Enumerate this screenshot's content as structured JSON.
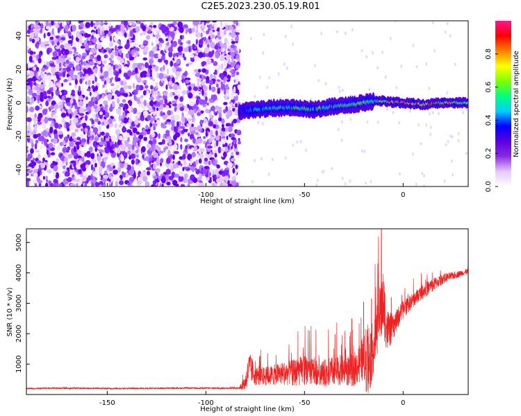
{
  "figure": {
    "title": "C2E5.2023.230.05.19.R01"
  },
  "chart_data": [
    {
      "type": "heatmap",
      "xlabel": "Height of straight line (km)",
      "ylabel": "Frequency (Hz)",
      "xlim": [
        -191,
        33
      ],
      "ylim": [
        -50,
        49
      ],
      "xticks": [
        -150,
        -100,
        -50,
        0
      ],
      "yticks": [
        -40,
        -20,
        0,
        20,
        40
      ],
      "grid": false,
      "noise_region_x": [
        -191,
        -83
      ],
      "signal_ridge": {
        "x": [
          -83,
          -75,
          -65,
          -55,
          -45,
          -35,
          -25,
          -15,
          -10,
          0,
          10,
          20,
          33
        ],
        "y": [
          -5,
          -4,
          -3,
          -3,
          -4,
          -2,
          -1,
          1,
          1,
          0,
          -1,
          0,
          0
        ],
        "peak_amplitude": [
          0.3,
          0.45,
          0.55,
          0.55,
          0.55,
          0.55,
          0.6,
          0.6,
          0.7,
          0.95,
          0.8,
          0.8,
          0.65
        ]
      },
      "colorbar": {
        "label": "Normalized spectral amplitude",
        "ticks": [
          0.0,
          0.2,
          0.4,
          0.6,
          0.8
        ],
        "range": [
          0,
          1
        ],
        "colormap": [
          "#ffffff",
          "#e6c8ff",
          "#8a2be2",
          "#5a00e0",
          "#0000ff",
          "#00d0ff",
          "#00ff80",
          "#80ff00",
          "#ffff00",
          "#ff8000",
          "#ff0000",
          "#ff1493"
        ]
      }
    },
    {
      "type": "line",
      "xlabel": "Height of straight line (km)",
      "ylabel": "SNR (10 * v/v)",
      "xlim": [
        -191,
        33
      ],
      "ylim": [
        0,
        5450
      ],
      "xticks": [
        -150,
        -100,
        -50,
        0
      ],
      "yticks": [
        1000,
        2000,
        3000,
        4000,
        5000
      ],
      "grid": false,
      "color": "#ee2222",
      "series": [
        {
          "x": [
            -191,
            -170,
            -150,
            -130,
            -110,
            -90,
            -83,
            -80,
            -78,
            -75,
            -70,
            -65,
            -60,
            -55,
            -50,
            -45,
            -40,
            -35,
            -30,
            -25,
            -20,
            -18,
            -15,
            -12,
            -10,
            -8,
            -5,
            -2,
            0,
            5,
            10,
            15,
            20,
            25,
            30,
            33
          ],
          "y": [
            200,
            210,
            200,
            205,
            210,
            210,
            220,
            400,
            900,
            650,
            600,
            650,
            700,
            720,
            800,
            760,
            700,
            780,
            800,
            800,
            1200,
            1100,
            1500,
            2600,
            3000,
            2100,
            2200,
            2600,
            2800,
            3100,
            3400,
            3600,
            3800,
            3900,
            4000,
            4050
          ],
          "spike_amplitude": [
            50,
            60,
            50,
            50,
            50,
            60,
            80,
            600,
            1000,
            700,
            600,
            700,
            800,
            900,
            1000,
            900,
            900,
            1000,
            1000,
            1100,
            1500,
            2800,
            1600,
            1800,
            2300,
            1500,
            800,
            700,
            600,
            500,
            500,
            450,
            350,
            250,
            200,
            200
          ]
        }
      ]
    }
  ]
}
